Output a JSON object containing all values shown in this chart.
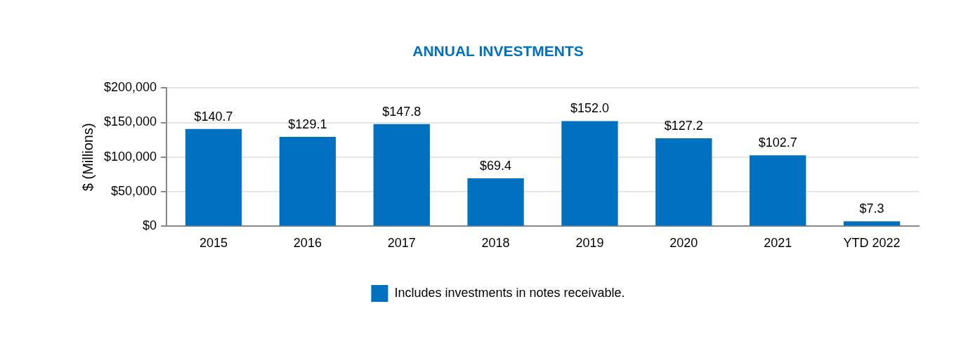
{
  "chart_data": {
    "type": "bar",
    "title": "ANNUAL INVESTMENTS",
    "ylabel": "$ (Millions)",
    "categories": [
      "2015",
      "2016",
      "2017",
      "2018",
      "2019",
      "2020",
      "2021",
      "YTD 2022"
    ],
    "series": [
      {
        "name": "Includes investments in notes receivable.",
        "color": "#0070c0",
        "values": [
          140700,
          129100,
          147800,
          69400,
          152000,
          127200,
          102700,
          7300
        ]
      }
    ],
    "annotations": [
      {
        "text": "$140.7",
        "x": "2015",
        "y": 140700
      },
      {
        "text": "$129.1",
        "x": "2016",
        "y": 129100
      },
      {
        "text": "$147.8",
        "x": "2017",
        "y": 147800
      },
      {
        "text": "$69.4",
        "x": "2018",
        "y": 69400
      },
      {
        "text": "$152.0",
        "x": "2019",
        "y": 152000
      },
      {
        "text": "$127.2",
        "x": "2020",
        "y": 127200
      },
      {
        "text": "$102.7",
        "x": "2021",
        "y": 102700
      },
      {
        "text": "$7.3",
        "x": "YTD 2022",
        "y": 7300
      }
    ],
    "ylim": [
      0,
      200000
    ],
    "yticks": [
      {
        "value": 0,
        "label": "$0"
      },
      {
        "value": 50000,
        "label": "$50,000"
      },
      {
        "value": 100000,
        "label": "$100,000"
      },
      {
        "value": 150000,
        "label": "$150,000"
      },
      {
        "value": 200000,
        "label": "$200,000"
      }
    ],
    "grid": "y",
    "legend": "bottom"
  }
}
